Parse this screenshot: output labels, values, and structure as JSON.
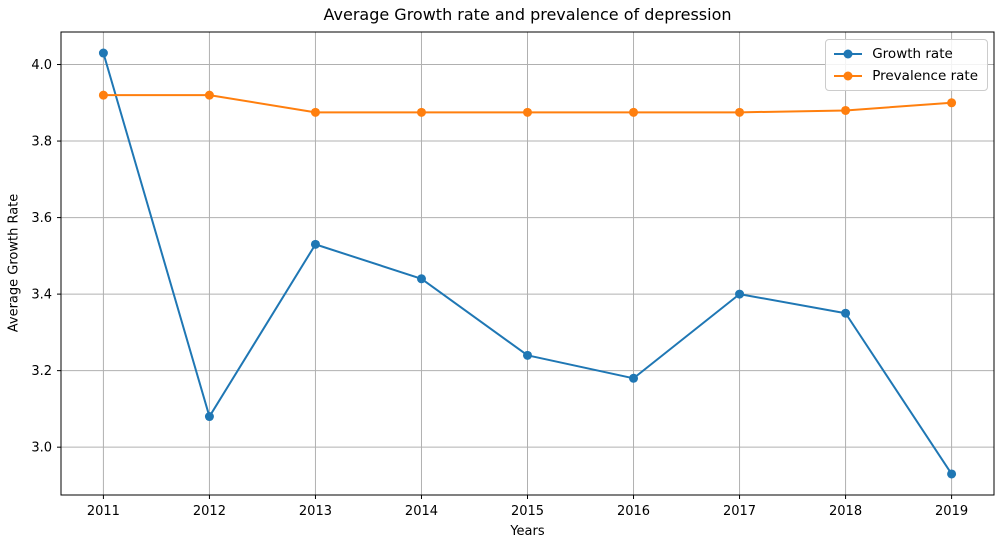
{
  "chart_data": {
    "type": "line",
    "title": "Average Growth rate and prevalence of depression",
    "xlabel": "Years",
    "ylabel": "Average Growth Rate",
    "x": [
      2011,
      2012,
      2013,
      2014,
      2015,
      2016,
      2017,
      2018,
      2019
    ],
    "series": [
      {
        "name": "Growth rate",
        "color": "#1f77b4",
        "values": [
          4.03,
          3.08,
          3.53,
          3.44,
          3.24,
          3.18,
          3.4,
          3.35,
          2.93
        ]
      },
      {
        "name": "Prevalence rate",
        "color": "#ff7f0e",
        "values": [
          3.92,
          3.92,
          3.875,
          3.875,
          3.875,
          3.875,
          3.875,
          3.88,
          3.9
        ]
      }
    ],
    "xlim": [
      2010.6,
      2019.4
    ],
    "ylim": [
      2.875,
      4.085
    ],
    "yticks": [
      3.0,
      3.2,
      3.4,
      3.6,
      3.8,
      4.0
    ],
    "grid": true,
    "grid_color": "#b0b0b0",
    "spine_color": "#000000",
    "legend_position": "upper right"
  }
}
